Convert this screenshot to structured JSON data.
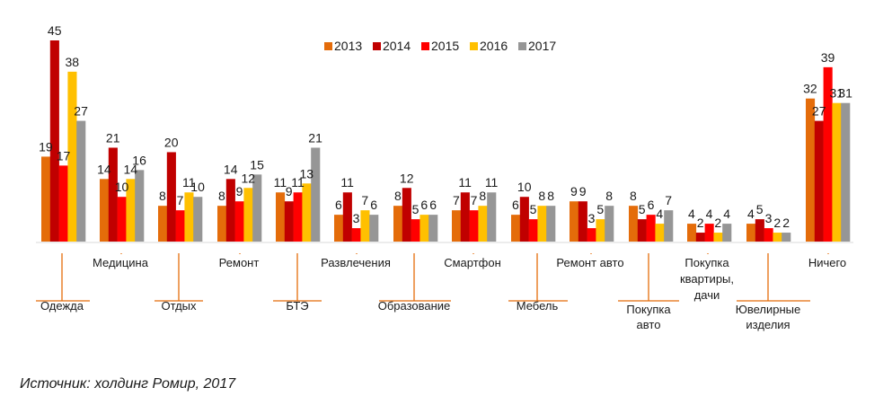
{
  "chart_data": {
    "type": "bar",
    "title": "",
    "xlabel": "",
    "ylabel": "",
    "ylim": [
      0,
      45
    ],
    "grid": false,
    "legend": "top-center",
    "categories": [
      "Одежда",
      "Медицина",
      "Отдых",
      "Ремонт",
      "БТЭ",
      "Развлечения",
      "Образование",
      "Смартфон",
      "Мебель",
      "Ремонт авто",
      "Покупка авто",
      "Покупка квартиры, дачи",
      "Ювелирные изделия",
      "Ничего"
    ],
    "series": [
      {
        "name": "2013",
        "color": "#e46c0a",
        "values": [
          19,
          14,
          8,
          8,
          11,
          6,
          8,
          7,
          6,
          9,
          8,
          4,
          4,
          32
        ]
      },
      {
        "name": "2014",
        "color": "#c00000",
        "values": [
          45,
          21,
          20,
          14,
          9,
          11,
          12,
          11,
          10,
          9,
          5,
          2,
          5,
          27
        ]
      },
      {
        "name": "2015",
        "color": "#ff0000",
        "values": [
          17,
          10,
          7,
          9,
          11,
          3,
          5,
          7,
          5,
          3,
          6,
          4,
          3,
          39
        ]
      },
      {
        "name": "2016",
        "color": "#ffc000",
        "values": [
          38,
          14,
          11,
          12,
          13,
          7,
          6,
          8,
          8,
          5,
          4,
          2,
          2,
          31
        ]
      },
      {
        "name": "2017",
        "color": "#969696",
        "values": [
          27,
          16,
          10,
          15,
          21,
          6,
          6,
          11,
          8,
          8,
          7,
          4,
          2,
          31
        ]
      }
    ]
  },
  "source": "Источник: холдинг Ромир, 2017"
}
